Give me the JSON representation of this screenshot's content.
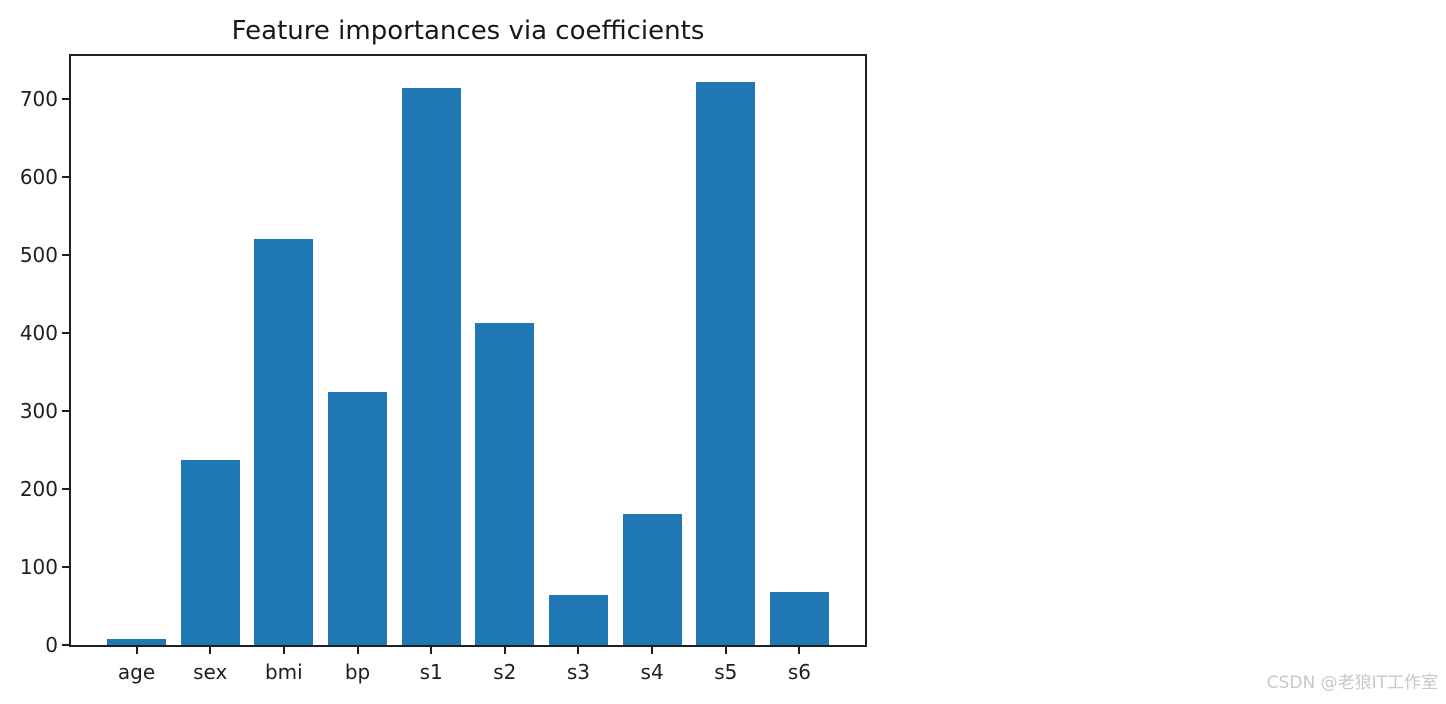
{
  "chart_data": {
    "type": "bar",
    "title": "Feature importances via coefficients",
    "categories": [
      "age",
      "sex",
      "bmi",
      "bp",
      "s1",
      "s2",
      "s3",
      "s4",
      "s5",
      "s6"
    ],
    "values": [
      8,
      237,
      520,
      324,
      714,
      413,
      64,
      168,
      722,
      68
    ],
    "xlabel": "",
    "ylabel": "",
    "yticks": [
      0,
      100,
      200,
      300,
      400,
      500,
      600,
      700
    ],
    "ylim": [
      0,
      755
    ],
    "bar_color": "#1f77b4",
    "axis_color": "#1f1f1f",
    "grid": false,
    "legend_position": "none"
  },
  "watermark": {
    "text": "CSDN @老狼IT工作室",
    "color": "#c6c8cf"
  }
}
